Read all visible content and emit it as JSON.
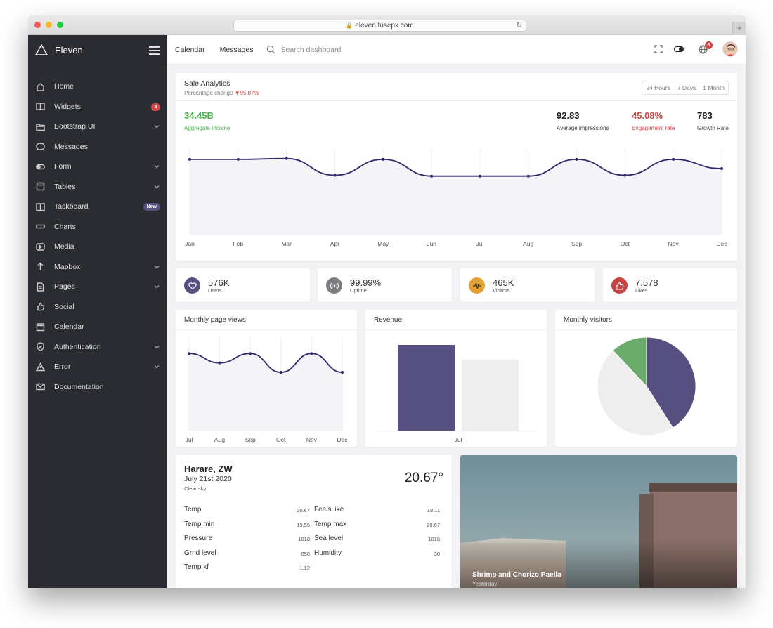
{
  "browser": {
    "url": "eleven.fusepx.com",
    "new_tab_label": "+"
  },
  "sidebar": {
    "brand": "Eleven",
    "items": [
      {
        "label": "Home",
        "icon": "home-icon"
      },
      {
        "label": "Widgets",
        "icon": "book-icon",
        "badge": "5"
      },
      {
        "label": "Bootstrap UI",
        "icon": "folder-icon",
        "chevron": true
      },
      {
        "label": "Messages",
        "icon": "chat-icon"
      },
      {
        "label": "Form",
        "icon": "toggle-icon",
        "chevron": true
      },
      {
        "label": "Tables",
        "icon": "table-icon",
        "chevron": true
      },
      {
        "label": "Taskboard",
        "icon": "board-icon",
        "tag": "New"
      },
      {
        "label": "Charts",
        "icon": "chart-icon"
      },
      {
        "label": "Media",
        "icon": "play-icon"
      },
      {
        "label": "Mapbox",
        "icon": "arrow-up-icon",
        "chevron": true
      },
      {
        "label": "Pages",
        "icon": "page-icon",
        "chevron": true
      },
      {
        "label": "Social",
        "icon": "thumbs-up-icon"
      },
      {
        "label": "Calendar",
        "icon": "calendar-icon"
      },
      {
        "label": "Authentication",
        "icon": "shield-icon",
        "chevron": true
      },
      {
        "label": "Error",
        "icon": "warning-icon",
        "chevron": true
      },
      {
        "label": "Documentation",
        "icon": "mail-icon"
      }
    ]
  },
  "topbar": {
    "links": [
      "Calendar",
      "Messages"
    ],
    "search_placeholder": "Search dashboard",
    "notification_count": "6"
  },
  "sale": {
    "title": "Sale Analytics",
    "subtitle_prefix": "Percentage change",
    "subtitle_change": "▼95.87%",
    "ranges": [
      "24 Hours",
      "7 Days",
      "1 Month"
    ],
    "income": {
      "value": "34.45B",
      "label": "Aggregate Income",
      "color": "#4caf50"
    },
    "metrics": [
      {
        "value": "92.83",
        "label": "Average impressions",
        "color": "#222222"
      },
      {
        "value": "45.08%",
        "label": "Engagement rate",
        "color": "#d04545"
      },
      {
        "value": "783",
        "label": "Growth Rate",
        "color": "#222222"
      }
    ]
  },
  "stats": [
    {
      "value": "576K",
      "label": "Users",
      "color": "#55507f",
      "icon": "heart-icon"
    },
    {
      "value": "99.99%",
      "label": "Uptime",
      "color": "#7c7c80",
      "icon": "broadcast-icon"
    },
    {
      "value": "465K",
      "label": "Visitors",
      "color": "#e3a136",
      "icon": "pulse-icon"
    },
    {
      "value": "7,578",
      "label": "Likes",
      "color": "#c74545",
      "icon": "thumbs-up-icon"
    }
  ],
  "panels": {
    "page_views_title": "Monthly page views",
    "revenue_title": "Revenue",
    "visitors_title": "Monthly visitors"
  },
  "weather": {
    "city": "Harare, ZW",
    "date": "July 21st 2020",
    "condition": "Clear sky",
    "temp": "20.67°",
    "rows_left": [
      {
        "label": "Temp",
        "value": "20.67"
      },
      {
        "label": "Temp min",
        "value": "19.55"
      },
      {
        "label": "Pressure",
        "value": "1018"
      },
      {
        "label": "Grnd level",
        "value": "858"
      },
      {
        "label": "Temp kf",
        "value": "1.12"
      }
    ],
    "rows_right": [
      {
        "label": "Feels like",
        "value": "18.11"
      },
      {
        "label": "Temp max",
        "value": "20.67"
      },
      {
        "label": "Sea level",
        "value": "1018"
      },
      {
        "label": "Humidity",
        "value": "30"
      }
    ]
  },
  "photo": {
    "caption": "Shrimp and Chorizo Paella",
    "subcaption": "Yesterday"
  },
  "colors": {
    "accent": "#2d2a6b",
    "purple": "#55507f",
    "green": "#6aaa6a",
    "light": "#eeeeee",
    "sidebar": "#2a2c31"
  },
  "chart_data": [
    {
      "type": "line",
      "x": [
        "Jan",
        "Feb",
        "Mar",
        "Apr",
        "May",
        "Jun",
        "Jul",
        "Aug",
        "Sep",
        "Oct",
        "Nov",
        "Dec"
      ],
      "series": [
        {
          "values": [
            90,
            90,
            91,
            71,
            90,
            70,
            70,
            70,
            90,
            71,
            90,
            79
          ]
        }
      ],
      "ylim": [
        0,
        100
      ]
    },
    {
      "type": "line",
      "x": [
        "Jul",
        "Aug",
        "Sep",
        "Oct",
        "Nov",
        "Dec"
      ],
      "series": [
        {
          "values": [
            90,
            79,
            90,
            68,
            90,
            68
          ]
        }
      ],
      "ylim": [
        0,
        100
      ]
    },
    {
      "type": "bar",
      "categories": [
        "Jul"
      ],
      "series": [
        {
          "values": [
            100
          ]
        },
        {
          "values": [
            83
          ]
        }
      ],
      "ylim": [
        0,
        100
      ]
    },
    {
      "type": "pie",
      "values": [
        41,
        47,
        12
      ],
      "colors": [
        "#55507f",
        "#eeeeee",
        "#6aaa6a"
      ]
    }
  ]
}
